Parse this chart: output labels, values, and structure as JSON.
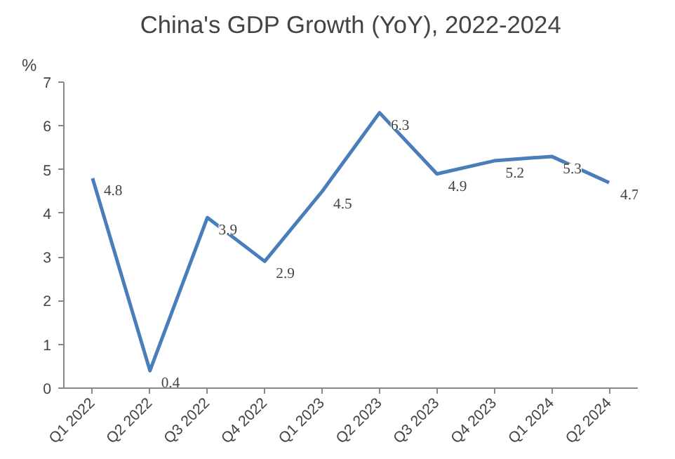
{
  "chart_data": {
    "type": "line",
    "title": "China's GDP Growth (YoY), 2022-2024",
    "ylabel": "%",
    "categories": [
      "Q1 2022",
      "Q2 2022",
      "Q3 2022",
      "Q4 2022",
      "Q1 2023",
      "Q2 2023",
      "Q3 2023",
      "Q4 2023",
      "Q1 2024",
      "Q2 2024"
    ],
    "series": [
      {
        "color": "#4a7ebb",
        "values": [
          4.8,
          0.4,
          3.9,
          2.9,
          4.5,
          6.3,
          4.9,
          5.2,
          5.3,
          4.7
        ]
      }
    ],
    "ylim": [
      0,
      7
    ],
    "yticks": [
      0,
      1,
      2,
      3,
      4,
      5,
      6,
      7
    ],
    "data_labels": true,
    "grid": false,
    "marker": "none",
    "line_style": "solid"
  }
}
